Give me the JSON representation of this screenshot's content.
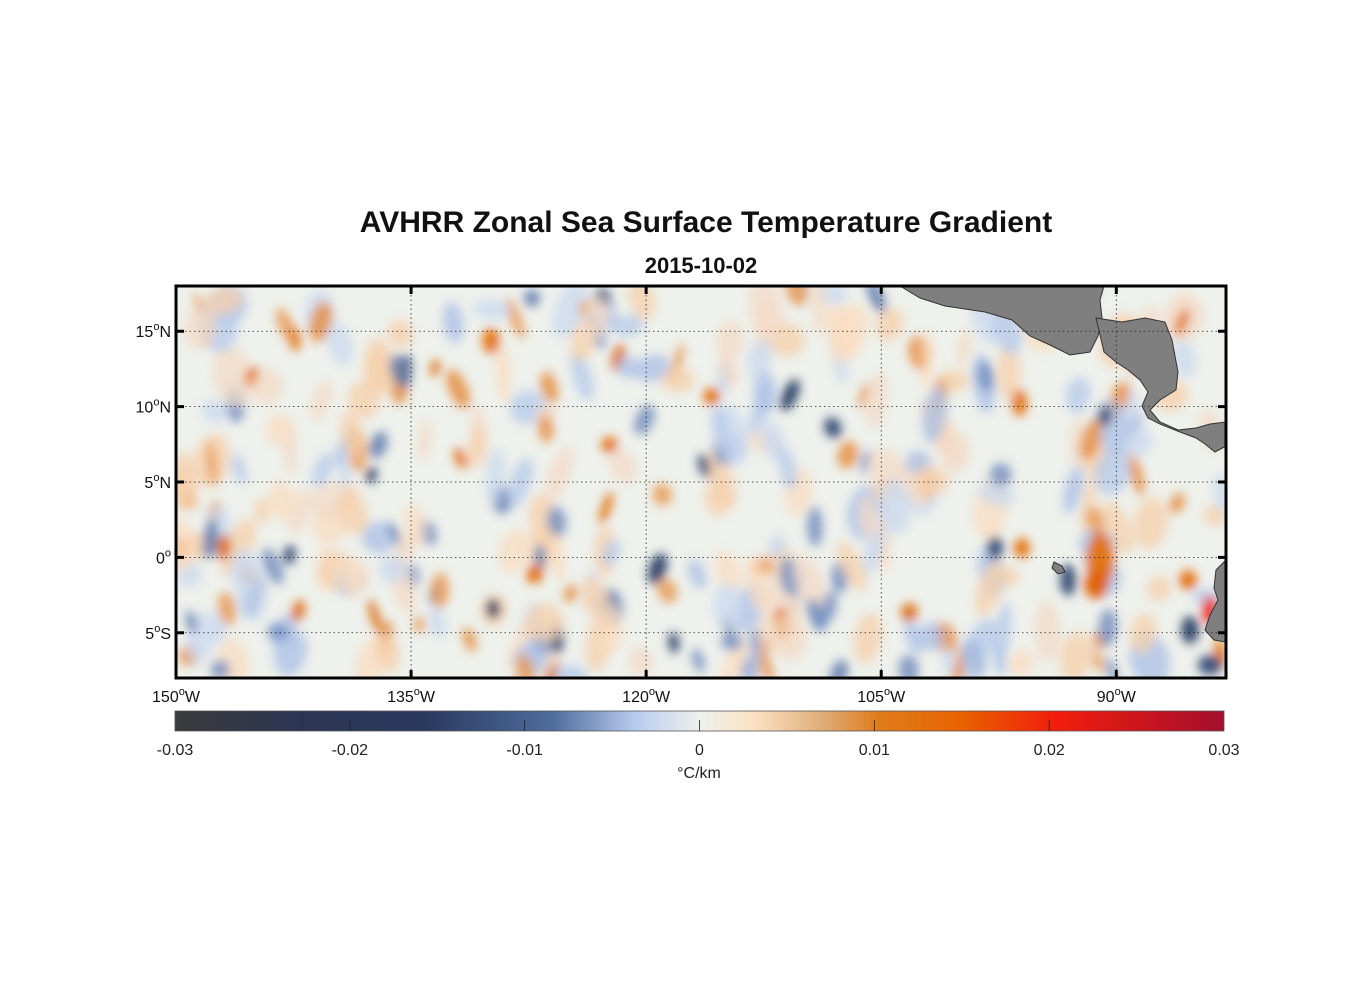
{
  "title": "AVHRR Zonal Sea Surface Temperature Gradient",
  "subtitle": "2015-10-02",
  "map": {
    "lon_range": [
      -150,
      -83
    ],
    "lat_range": [
      -8,
      18
    ],
    "lon_ticks": [
      {
        "value": -150,
        "deg": "150",
        "hemi": "W"
      },
      {
        "value": -135,
        "deg": "135",
        "hemi": "W"
      },
      {
        "value": -120,
        "deg": "120",
        "hemi": "W"
      },
      {
        "value": -105,
        "deg": "105",
        "hemi": "W"
      },
      {
        "value": -90,
        "deg": "90",
        "hemi": "W"
      }
    ],
    "lat_ticks": [
      {
        "value": 15,
        "deg": "15",
        "hemi": "N"
      },
      {
        "value": 10,
        "deg": "10",
        "hemi": "N"
      },
      {
        "value": 5,
        "deg": "5",
        "hemi": "N"
      },
      {
        "value": 0,
        "deg": "0",
        "hemi": ""
      },
      {
        "value": -5,
        "deg": "5",
        "hemi": "S"
      }
    ],
    "grid": true,
    "land_color": "#7f7f7f"
  },
  "colorbar": {
    "range": [
      -0.03,
      0.03
    ],
    "ticks": [
      "-0.03",
      "-0.02",
      "-0.01",
      "0",
      "0.01",
      "0.02",
      "0.03"
    ],
    "label": "°C/km",
    "colors": [
      "#3b3b3b",
      "#2a3a5f",
      "#3d5a8c",
      "#b8cff0",
      "#eef1ec",
      "#fbe3c5",
      "#df7d1c",
      "#e76e00",
      "#f21d0c",
      "#a30f2e"
    ]
  }
}
